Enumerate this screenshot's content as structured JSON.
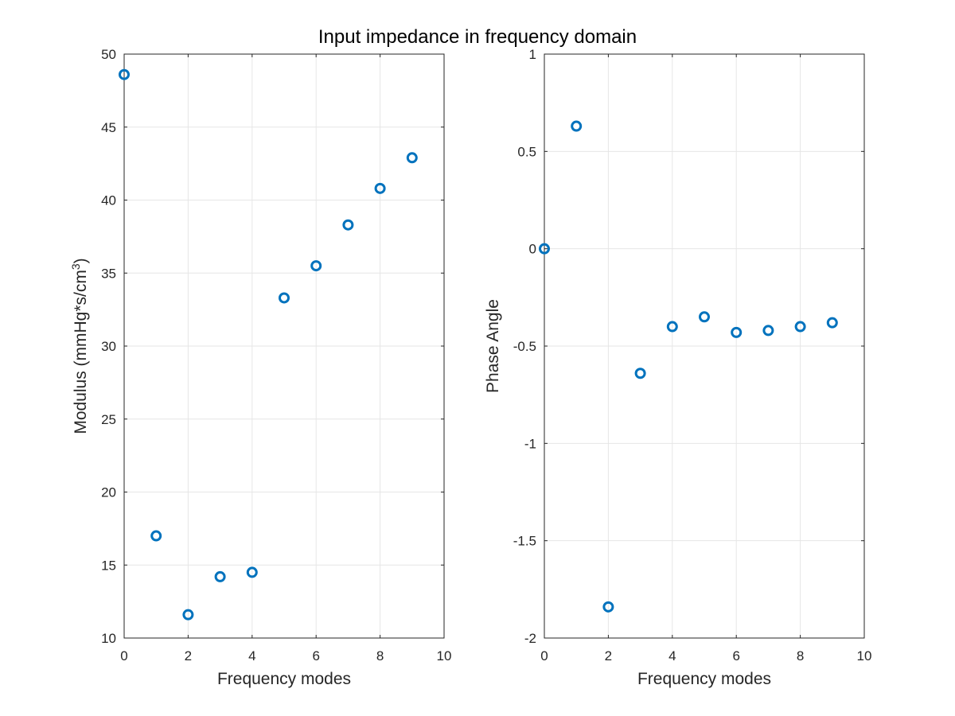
{
  "figure": {
    "title": "Input impedance in frequency domain"
  },
  "colors": {
    "marker": "#0072BD",
    "axes": "#262626",
    "grid": "#e6e6e6"
  },
  "chart_data": [
    {
      "type": "scatter",
      "marker": "circle",
      "xlabel": "Frequency modes",
      "ylabel": "Modulus (mmHg*s/cm",
      "ylabel_superscript": "3",
      "ylabel_close": ")",
      "xlim": [
        0,
        10
      ],
      "ylim": [
        10,
        50
      ],
      "xticks": [
        "0",
        "2",
        "4",
        "6",
        "8",
        "10"
      ],
      "yticks": [
        "10",
        "15",
        "20",
        "25",
        "30",
        "35",
        "40",
        "45",
        "50"
      ],
      "grid": true,
      "x": [
        0,
        1,
        2,
        3,
        4,
        5,
        6,
        7,
        8,
        9
      ],
      "y": [
        48.6,
        17.0,
        11.6,
        14.2,
        14.5,
        33.3,
        35.5,
        38.3,
        40.8,
        42.9
      ]
    },
    {
      "type": "scatter",
      "marker": "circle",
      "xlabel": "Frequency modes",
      "ylabel": "Phase Angle",
      "xlim": [
        0,
        10
      ],
      "ylim": [
        -2,
        1
      ],
      "xticks": [
        "0",
        "2",
        "4",
        "6",
        "8",
        "10"
      ],
      "yticks": [
        "-2",
        "-1.5",
        "-1",
        "-0.5",
        "0",
        "0.5",
        "1"
      ],
      "grid": true,
      "x": [
        0,
        1,
        2,
        3,
        4,
        5,
        6,
        7,
        8,
        9
      ],
      "y": [
        0.0,
        0.63,
        -1.84,
        -0.64,
        -0.4,
        -0.35,
        -0.43,
        -0.42,
        -0.4,
        -0.38
      ]
    }
  ]
}
